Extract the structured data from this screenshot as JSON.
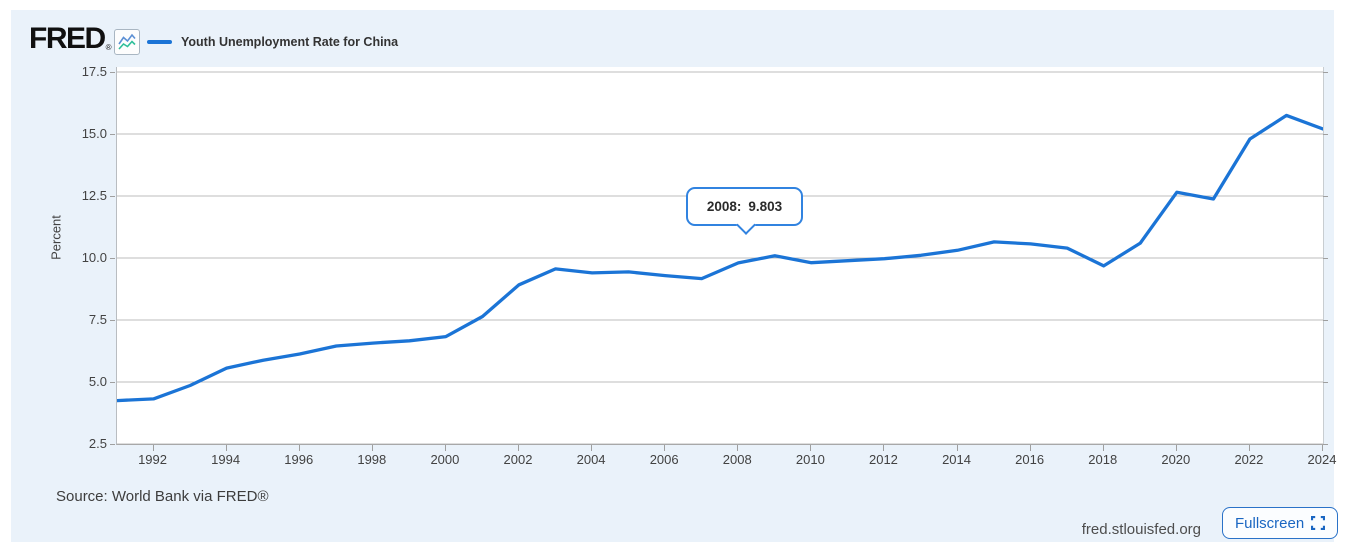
{
  "header": {
    "logo_text": "FRED",
    "registered_mark": "®",
    "legend_label": "Youth Unemployment Rate for China"
  },
  "tooltip": {
    "label": "2008:",
    "value": "9.803"
  },
  "footer": {
    "source": "Source: World Bank via FRED®",
    "site": "fred.stlouisfed.org",
    "fullscreen_label": "Fullscreen"
  },
  "colors": {
    "line": "#1b74d6",
    "card_bg": "#eaf2fa",
    "grid": "#bdbdbd",
    "tooltip_border": "#3183e0",
    "accent_blue": "#1a66c2"
  },
  "chart_data": {
    "type": "line",
    "title": "Youth Unemployment Rate for China",
    "ylabel": "Percent",
    "xlabel": "",
    "ylim": [
      2.5,
      17.5
    ],
    "xlim": [
      1991,
      2024
    ],
    "yticks": [
      2.5,
      5.0,
      7.5,
      10.0,
      12.5,
      15.0,
      17.5
    ],
    "xticks": [
      1992,
      1994,
      1996,
      1998,
      2000,
      2002,
      2004,
      2006,
      2008,
      2010,
      2012,
      2014,
      2016,
      2018,
      2020,
      2022,
      2024
    ],
    "grid": true,
    "legend_position": "top-left",
    "x": [
      1991,
      1992,
      1993,
      1994,
      1995,
      1996,
      1997,
      1998,
      1999,
      2000,
      2001,
      2002,
      2003,
      2004,
      2005,
      2006,
      2007,
      2008,
      2009,
      2010,
      2011,
      2012,
      2013,
      2014,
      2015,
      2016,
      2017,
      2018,
      2019,
      2020,
      2021,
      2022,
      2023,
      2024
    ],
    "values": [
      4.25,
      4.32,
      4.86,
      5.56,
      5.88,
      6.13,
      6.45,
      6.57,
      6.66,
      6.83,
      7.64,
      8.92,
      9.56,
      9.4,
      9.44,
      9.29,
      9.17,
      9.803,
      10.09,
      9.81,
      9.89,
      9.97,
      10.11,
      10.31,
      10.65,
      10.57,
      10.4,
      9.68,
      10.6,
      12.65,
      12.38,
      14.8,
      15.75,
      15.2
    ]
  }
}
